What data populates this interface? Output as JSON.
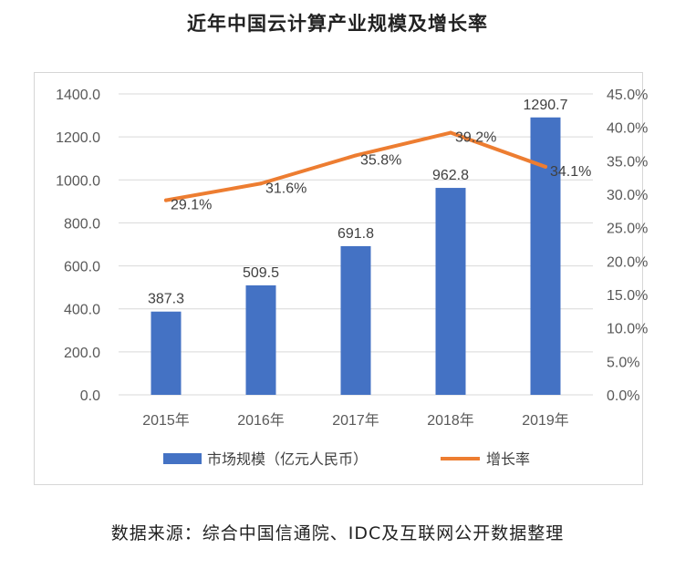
{
  "header": {
    "title": "近年中国云计算产业规模及增长率"
  },
  "footer": {
    "source": "数据来源：综合中国信通院、IDC及互联网公开数据整理"
  },
  "colors": {
    "bar": "#4472C4",
    "line": "#ED7D31",
    "grid": "#d9d9d9"
  },
  "chart_data": {
    "type": "bar",
    "title": "近年中国云计算产业规模及增长率",
    "categories": [
      "2015年",
      "2016年",
      "2017年",
      "2018年",
      "2019年"
    ],
    "series": [
      {
        "name": "市场规模（亿元人民币）",
        "type": "bar",
        "axis": "left",
        "values": [
          387.3,
          509.5,
          691.8,
          962.8,
          1290.7
        ],
        "labels": [
          "387.3",
          "509.5",
          "691.8",
          "962.8",
          "1290.7"
        ]
      },
      {
        "name": "增长率",
        "type": "line",
        "axis": "right",
        "values": [
          29.1,
          31.6,
          35.8,
          39.2,
          34.1
        ],
        "labels": [
          "29.1%",
          "31.6%",
          "35.8%",
          "39.2%",
          "34.1%"
        ]
      }
    ],
    "y_left": {
      "min": 0,
      "max": 1400,
      "step": 200,
      "ticks": [
        "0.0",
        "200.0",
        "400.0",
        "600.0",
        "800.0",
        "1000.0",
        "1200.0",
        "1400.0"
      ]
    },
    "y_right": {
      "min": 0,
      "max": 45,
      "step": 5,
      "ticks": [
        "0.0%",
        "5.0%",
        "10.0%",
        "15.0%",
        "20.0%",
        "25.0%",
        "30.0%",
        "35.0%",
        "40.0%",
        "45.0%"
      ]
    },
    "grid": true,
    "legend": "bottom"
  }
}
